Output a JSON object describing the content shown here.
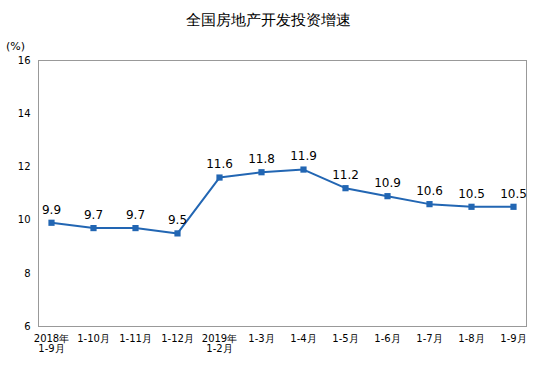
{
  "chart_data": {
    "type": "line",
    "title": "全国房地产开发投资增速",
    "y_label": "(%)",
    "categories": [
      "2018年\n1-9月",
      "1-10月",
      "1-11月",
      "1-12月",
      "2019年\n1-2月",
      "1-3月",
      "1-4月",
      "1-5月",
      "1-6月",
      "1-7月",
      "1-8月",
      "1-9月"
    ],
    "values": [
      9.9,
      9.7,
      9.7,
      9.5,
      11.6,
      11.8,
      11.9,
      11.2,
      10.9,
      10.6,
      10.5,
      10.5
    ],
    "color": "#2266b3",
    "marker": "square",
    "ylim": [
      6,
      16
    ],
    "yticks": [
      6,
      8,
      10,
      12,
      14,
      16
    ],
    "data_labels": true,
    "grid": false
  }
}
